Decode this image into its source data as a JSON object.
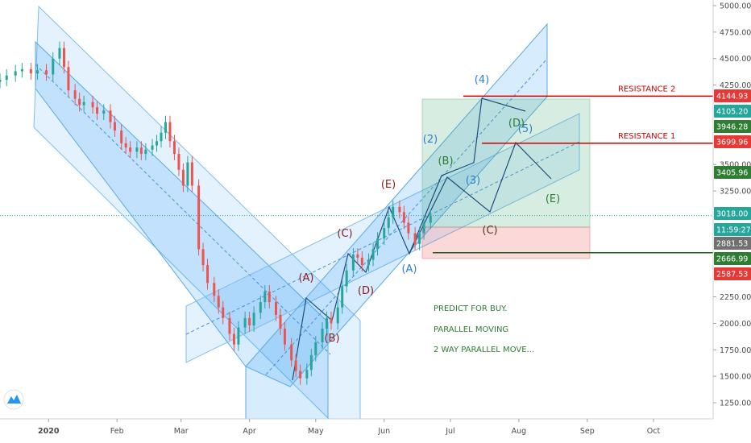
{
  "chart_data": {
    "type": "candlestick",
    "y_axis": {
      "ticks": [
        5000,
        4750,
        4500,
        4250,
        3500,
        3250,
        2250,
        2000,
        1750,
        1500,
        1250
      ],
      "tick_labels": [
        "5000.00",
        "4750.00",
        "4500.00",
        "4250.00",
        "3500.00",
        "3250.00",
        "2250.00",
        "2000.00",
        "1750.00",
        "1500.00",
        "1250.00"
      ],
      "range": [
        1050,
        5050
      ]
    },
    "x_axis": {
      "tick_labels": [
        "2020",
        "Feb",
        "Mar",
        "Apr",
        "May",
        "Jun",
        "Jul",
        "Aug",
        "Sep",
        "Oct"
      ],
      "tick_dates": [
        "2020-01-01",
        "2020-02-01",
        "2020-03-01",
        "2020-04-01",
        "2020-05-01",
        "2020-06-01",
        "2020-07-01",
        "2020-08-01",
        "2020-09-01",
        "2020-10-01"
      ],
      "range": [
        "2019-12-10",
        "2020-10-28"
      ]
    },
    "price_tags": [
      {
        "label": "4144.93",
        "value": 4144.93,
        "color": "#e53935"
      },
      {
        "label": "4105.20",
        "value": 4105.2,
        "color": "#26a69a"
      },
      {
        "label": "3946.28",
        "value": 3946.28,
        "color": "#2e7d32"
      },
      {
        "label": "3699.96",
        "value": 3699.96,
        "color": "#e53935"
      },
      {
        "label": "3405.96",
        "value": 3405.96,
        "color": "#2e7d32"
      },
      {
        "label": "3018.00",
        "value": 3018.0,
        "color": "#26a69a"
      },
      {
        "label": "11:59:27",
        "value": 2935,
        "color": "#26a69a"
      },
      {
        "label": "2881.53",
        "value": 2881.53,
        "color": "#707070"
      },
      {
        "label": "2666.99",
        "value": 2666.99,
        "color": "#2e7d32"
      },
      {
        "label": "2587.53",
        "value": 2587.53,
        "color": "#e53935"
      }
    ],
    "last_price": 3018.0,
    "resistance_lines": [
      {
        "label": "RESISTANCE 2",
        "value": 4144.93
      },
      {
        "label": "RESISTANCE 1",
        "value": 3699.96
      }
    ],
    "support_line": {
      "value": 2666.99
    },
    "candles": [
      {
        "d": "2019-12-10",
        "c": 4300
      },
      {
        "d": "2019-12-13",
        "c": 4340
      },
      {
        "d": "2019-12-17",
        "c": 4380
      },
      {
        "d": "2019-12-20",
        "c": 4400
      },
      {
        "d": "2019-12-24",
        "c": 4360
      },
      {
        "d": "2019-12-27",
        "c": 4390
      },
      {
        "d": "2019-12-31",
        "c": 4350
      },
      {
        "d": "2020-01-03",
        "c": 4500
      },
      {
        "d": "2020-01-06",
        "c": 4600
      },
      {
        "d": "2020-01-08",
        "c": 4420
      },
      {
        "d": "2020-01-10",
        "c": 4200
      },
      {
        "d": "2020-01-13",
        "c": 4120
      },
      {
        "d": "2020-01-15",
        "c": 4060
      },
      {
        "d": "2020-01-17",
        "c": 4090
      },
      {
        "d": "2020-01-21",
        "c": 4040
      },
      {
        "d": "2020-01-23",
        "c": 3980
      },
      {
        "d": "2020-01-26",
        "c": 4010
      },
      {
        "d": "2020-01-29",
        "c": 3900
      },
      {
        "d": "2020-01-31",
        "c": 3820
      },
      {
        "d": "2020-02-03",
        "c": 3700
      },
      {
        "d": "2020-02-05",
        "c": 3660
      },
      {
        "d": "2020-02-07",
        "c": 3620
      },
      {
        "d": "2020-02-10",
        "c": 3660
      },
      {
        "d": "2020-02-12",
        "c": 3600
      },
      {
        "d": "2020-02-14",
        "c": 3640
      },
      {
        "d": "2020-02-17",
        "c": 3680
      },
      {
        "d": "2020-02-19",
        "c": 3720
      },
      {
        "d": "2020-02-21",
        "c": 3800
      },
      {
        "d": "2020-02-23",
        "c": 3900
      },
      {
        "d": "2020-02-25",
        "c": 3720
      },
      {
        "d": "2020-02-27",
        "c": 3600
      },
      {
        "d": "2020-02-29",
        "c": 3450
      },
      {
        "d": "2020-03-02",
        "c": 3300
      },
      {
        "d": "2020-03-04",
        "c": 3520
      },
      {
        "d": "2020-03-06",
        "c": 3300
      },
      {
        "d": "2020-03-09",
        "c": 2700
      },
      {
        "d": "2020-03-11",
        "c": 2550
      },
      {
        "d": "2020-03-13",
        "c": 2380
      },
      {
        "d": "2020-03-16",
        "c": 2260
      },
      {
        "d": "2020-03-18",
        "c": 2150
      },
      {
        "d": "2020-03-20",
        "c": 2050
      },
      {
        "d": "2020-03-23",
        "c": 1900
      },
      {
        "d": "2020-03-25",
        "c": 1800
      },
      {
        "d": "2020-03-27",
        "c": 1960
      },
      {
        "d": "2020-03-30",
        "c": 2050
      },
      {
        "d": "2020-04-01",
        "c": 1980
      },
      {
        "d": "2020-04-03",
        "c": 2100
      },
      {
        "d": "2020-04-06",
        "c": 2200
      },
      {
        "d": "2020-04-08",
        "c": 2300
      },
      {
        "d": "2020-04-10",
        "c": 2200
      },
      {
        "d": "2020-04-13",
        "c": 2080
      },
      {
        "d": "2020-04-15",
        "c": 1950
      },
      {
        "d": "2020-04-17",
        "c": 1800
      },
      {
        "d": "2020-04-20",
        "c": 1650
      },
      {
        "d": "2020-04-22",
        "c": 1550
      },
      {
        "d": "2020-04-24",
        "c": 1480
      },
      {
        "d": "2020-04-27",
        "c": 1560
      },
      {
        "d": "2020-04-29",
        "c": 1700
      },
      {
        "d": "2020-05-01",
        "c": 1820
      },
      {
        "d": "2020-05-04",
        "c": 1950
      },
      {
        "d": "2020-05-06",
        "c": 2050
      },
      {
        "d": "2020-05-08",
        "c": 2000
      },
      {
        "d": "2020-05-11",
        "c": 2150
      },
      {
        "d": "2020-05-13",
        "c": 2350
      },
      {
        "d": "2020-05-15",
        "c": 2500
      },
      {
        "d": "2020-05-18",
        "c": 2650
      },
      {
        "d": "2020-05-20",
        "c": 2620
      },
      {
        "d": "2020-05-22",
        "c": 2550
      },
      {
        "d": "2020-05-25",
        "c": 2600
      },
      {
        "d": "2020-05-27",
        "c": 2700
      },
      {
        "d": "2020-05-29",
        "c": 2800
      },
      {
        "d": "2020-06-01",
        "c": 2900
      },
      {
        "d": "2020-06-03",
        "c": 3000
      },
      {
        "d": "2020-06-05",
        "c": 3100
      },
      {
        "d": "2020-06-08",
        "c": 3050
      },
      {
        "d": "2020-06-10",
        "c": 2950
      },
      {
        "d": "2020-06-12",
        "c": 2850
      },
      {
        "d": "2020-06-15",
        "c": 2750
      },
      {
        "d": "2020-06-17",
        "c": 2850
      },
      {
        "d": "2020-06-19",
        "c": 2950
      },
      {
        "d": "2020-06-22",
        "c": 3018
      }
    ]
  },
  "channels_note": "",
  "wave_labels": [
    {
      "t": "(4)",
      "color": "#2a7fd4"
    },
    {
      "t": "(D)",
      "color": "#2e7d32"
    },
    {
      "t": "(5)",
      "color": "#2a7fd4"
    },
    {
      "t": "(2)",
      "color": "#2a7fd4"
    },
    {
      "t": "(B)",
      "color": "#2e7d32"
    },
    {
      "t": "(3)",
      "color": "#2a7fd4"
    },
    {
      "t": "(E)",
      "color": "#8b1a1a"
    },
    {
      "t": "(E)",
      "color": "#2e7d32"
    },
    {
      "t": "(C)",
      "color": "#8b1a1a"
    },
    {
      "t": "(C)",
      "color": "#5a3a1a"
    },
    {
      "t": "(A)",
      "color": "#8b1a1a"
    },
    {
      "t": "(A)",
      "color": "#2a7fd4"
    },
    {
      "t": "(D)",
      "color": "#8b1a1a"
    },
    {
      "t": "(B)",
      "color": "#8b1a1a"
    }
  ],
  "notes": [
    "PREDICT FOR BUY.",
    "PARALLEL MOVING",
    "2 WAY PARALLEL MOVE..."
  ],
  "logo_icon": "tradingview-logo-icon"
}
